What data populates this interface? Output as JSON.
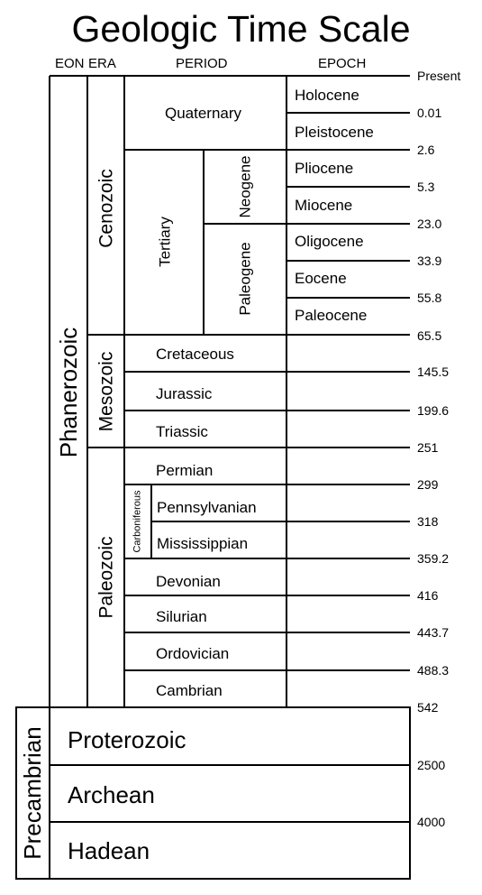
{
  "title": "Geologic Time Scale",
  "headers": {
    "eon": "EON",
    "era": "ERA",
    "period": "PERIOD",
    "epoch": "EPOCH"
  },
  "eons": {
    "phanerozoic": "Phanerozoic",
    "precambrian": "Precambrian"
  },
  "eras": {
    "cenozoic": "Cenozoic",
    "mesozoic": "Mesozoic",
    "paleozoic": "Paleozoic"
  },
  "cenozoic_periods": {
    "quaternary": "Quaternary",
    "tertiary": "Tertiary",
    "neogene": "Neogene",
    "paleogene": "Paleogene"
  },
  "epochs": [
    "Holocene",
    "Pleistocene",
    "Pliocene",
    "Miocene",
    "Oligocene",
    "Eocene",
    "Paleocene"
  ],
  "mesozoic_periods": [
    "Cretaceous",
    "Jurassic",
    "Triassic"
  ],
  "paleozoic_periods": {
    "permian": "Permian",
    "carboniferous": "Carboniferous",
    "pennsylvanian": "Pennsylvanian",
    "mississippian": "Mississippian",
    "devonian": "Devonian",
    "silurian": "Silurian",
    "ordovician": "Ordovician",
    "cambrian": "Cambrian"
  },
  "precambrian_eons": [
    "Proterozoic",
    "Archean",
    "Hadean"
  ],
  "ages": [
    "Present",
    "0.01",
    "2.6",
    "5.3",
    "23.0",
    "33.9",
    "55.8",
    "65.5",
    "145.5",
    "199.6",
    "251",
    "299",
    "318",
    "359.2",
    "416",
    "443.7",
    "488.3",
    "542",
    "2500",
    "4000"
  ]
}
